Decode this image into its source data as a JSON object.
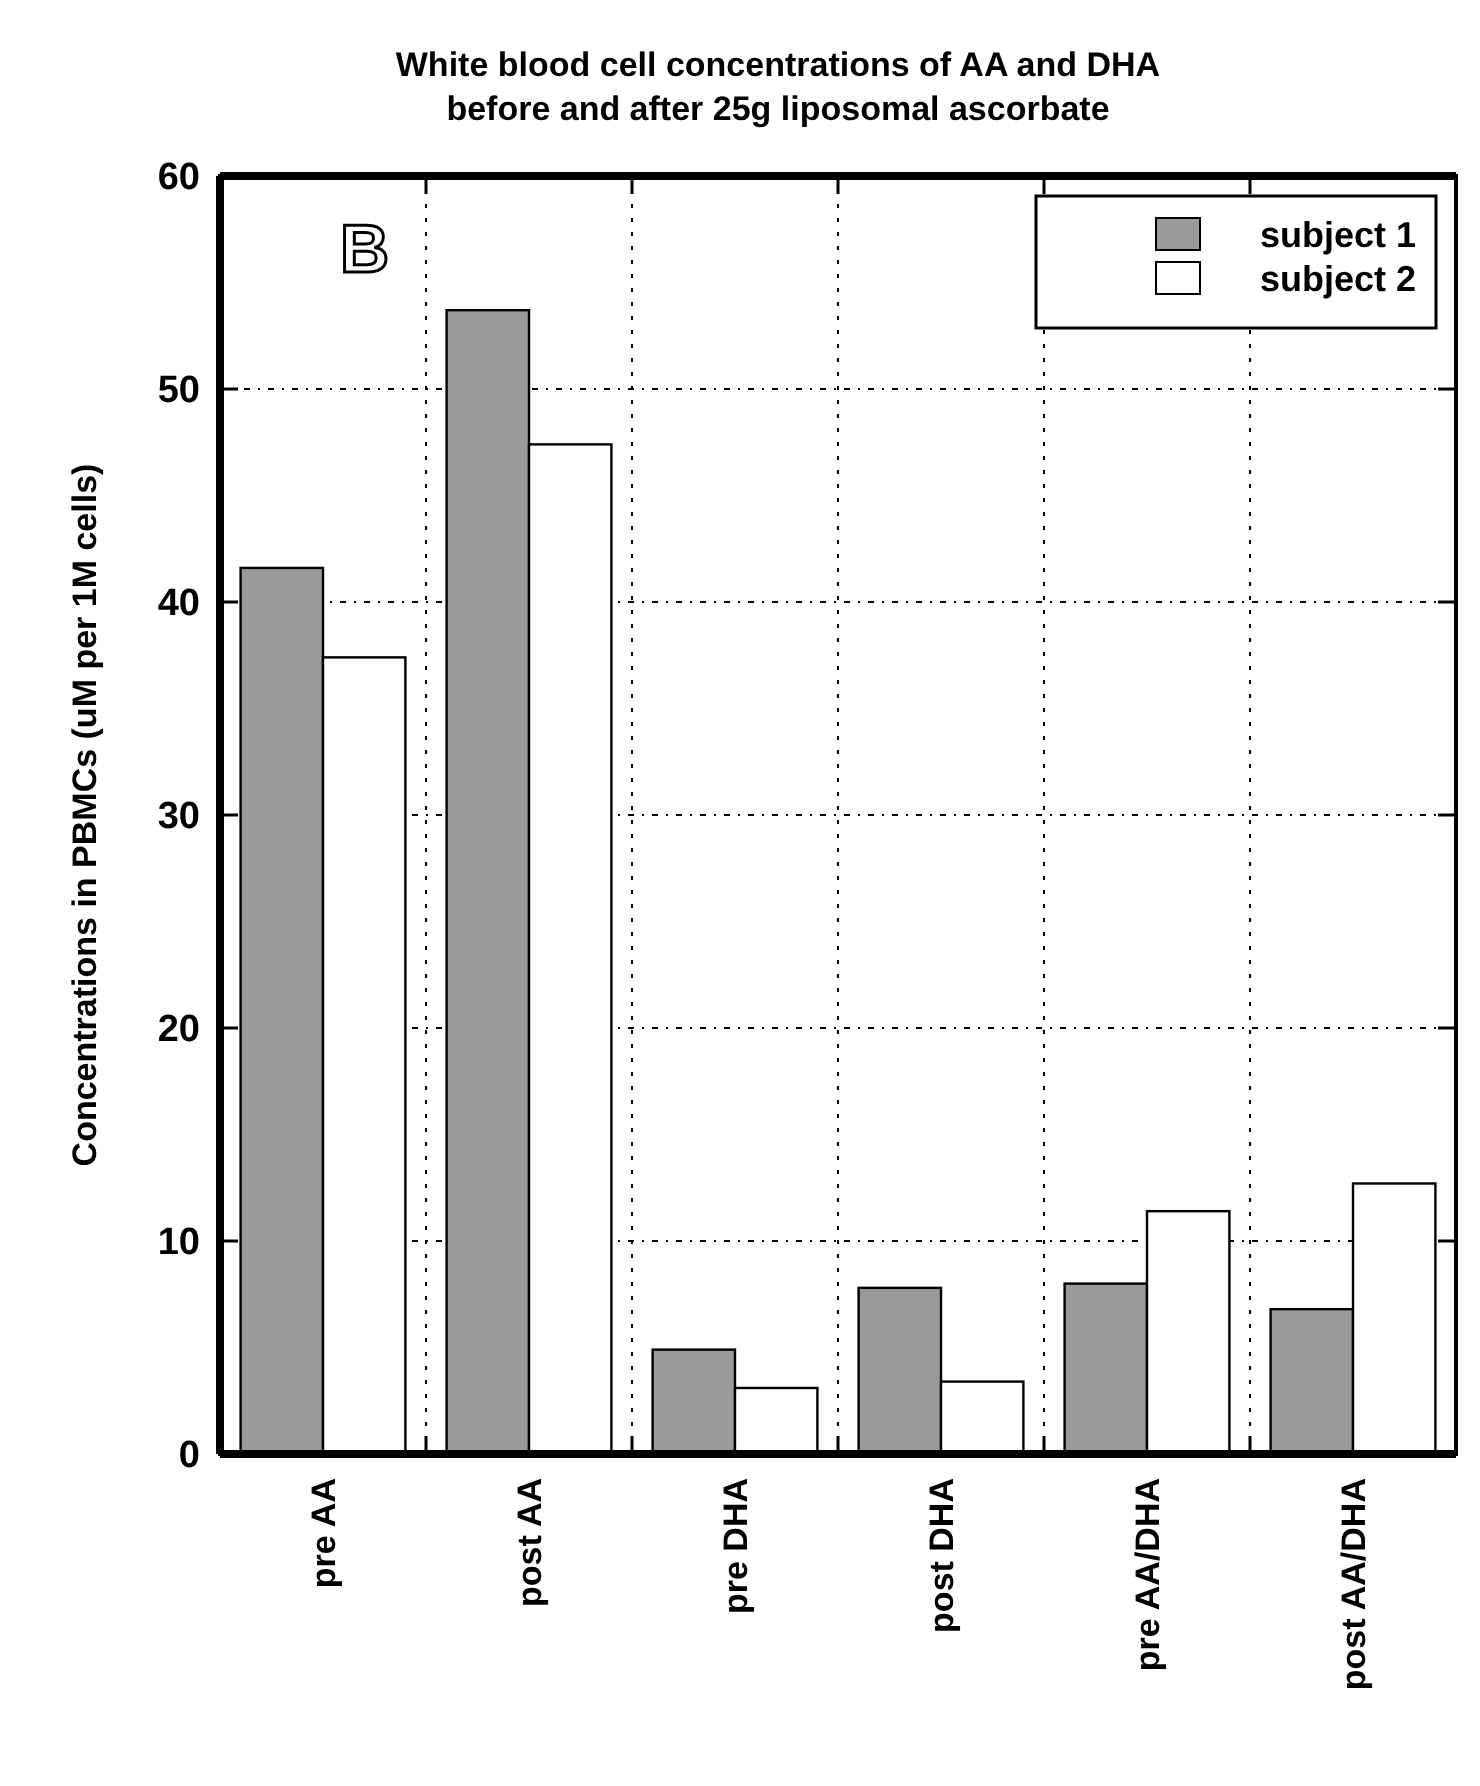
{
  "chart_data": {
    "type": "bar",
    "title": "White blood cell concentrations of AA and DHA\nbefore and after 25g liposomal ascorbate",
    "ylabel": "Concentrations in PBMCs (uM per 1M cells)",
    "annotations": [
      "B"
    ],
    "categories": [
      "pre AA",
      "post AA",
      "pre DHA",
      "post DHA",
      "pre AA/DHA",
      "post AA/DHA"
    ],
    "series": [
      {
        "name": "subject 1",
        "color": "#9a9a9a",
        "values": [
          41.6,
          53.7,
          4.9,
          7.8,
          8.0,
          6.8
        ]
      },
      {
        "name": "subject 2",
        "color": "#ffffff",
        "values": [
          37.4,
          47.4,
          3.1,
          3.4,
          11.4,
          12.7
        ]
      }
    ],
    "ylim": [
      0,
      60
    ],
    "yticks": [
      0,
      10,
      20,
      30,
      40,
      50,
      60
    ],
    "grid": true,
    "legend": "top right"
  }
}
